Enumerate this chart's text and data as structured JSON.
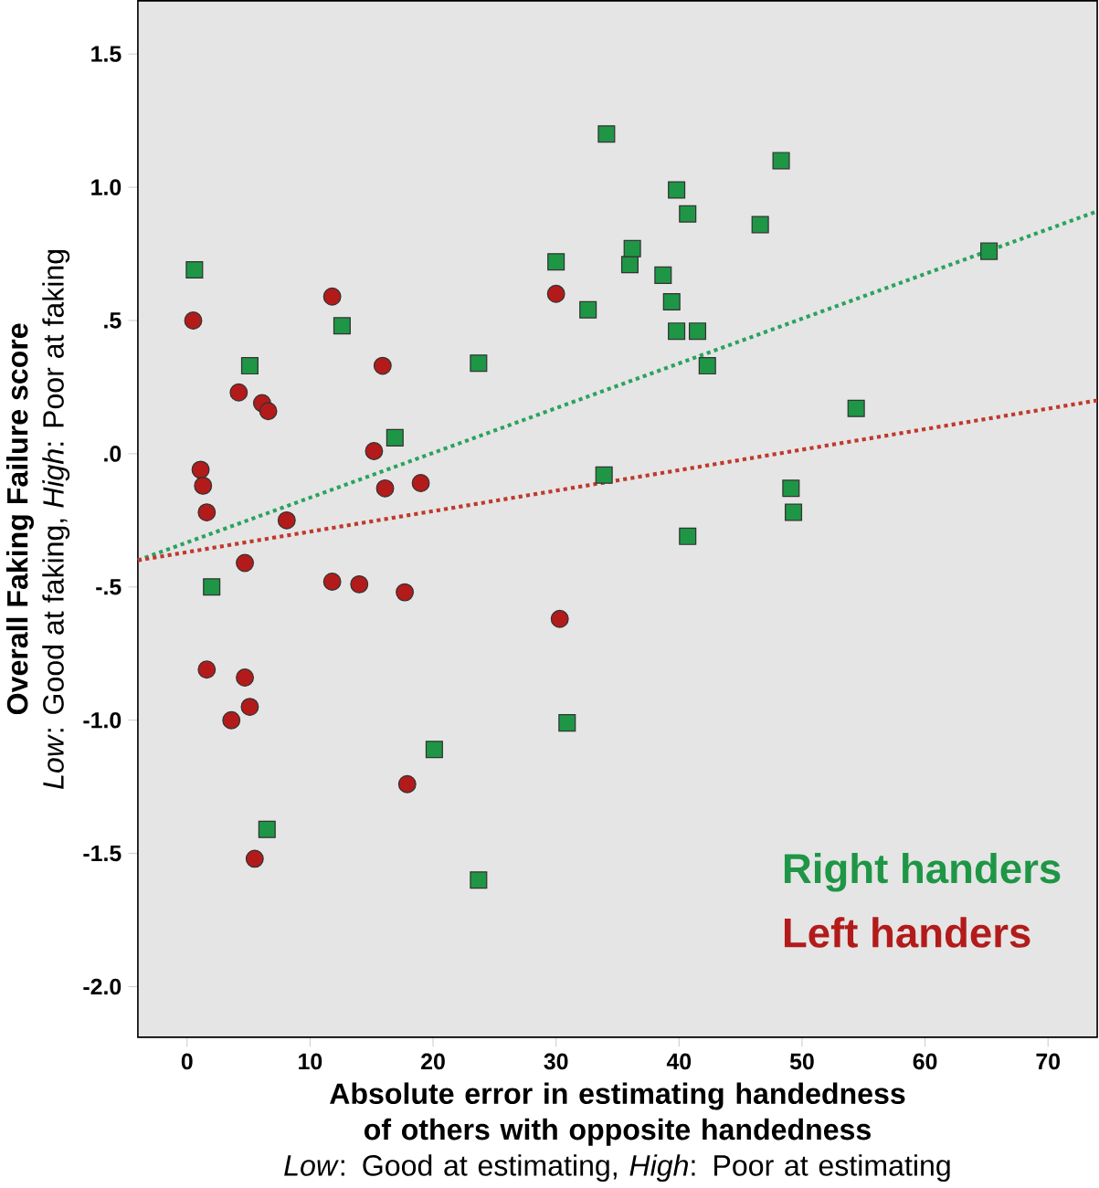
{
  "chart_data": {
    "type": "scatter",
    "xlabel": "Absolute error in estimating handedness of others with opposite handedness",
    "ylabel": "Overall Faking Failure score",
    "annotations": [
      "*Low*: Good at faking, *High*: Poor at faking",
      "*Low*: Good at estimating, *High*: Poor at estimating"
    ],
    "xlim": [
      -4,
      74
    ],
    "ylim": [
      -2.19,
      1.7
    ],
    "xticks": [
      0,
      10,
      20,
      30,
      40,
      50,
      60,
      70
    ],
    "yticks": [
      {
        "value": 1.5,
        "label": "1.5"
      },
      {
        "value": 1.0,
        "label": "1.0"
      },
      {
        "value": 0.5,
        "label": ".5"
      },
      {
        "value": 0,
        "label": ".0"
      },
      {
        "value": -0.5,
        "label": "-.5"
      },
      {
        "value": -1.0,
        "label": "-1.0"
      },
      {
        "value": -1.5,
        "label": "-1.5"
      },
      {
        "value": -2.0,
        "label": "-2.0"
      }
    ],
    "grid": false,
    "legend": "bottom right",
    "series": [
      {
        "name": "Right handers",
        "color": "#1e9646",
        "marker": "square",
        "x": [
          0.6,
          5.1,
          12.6,
          2.0,
          6.5,
          16.9,
          20.1,
          23.7,
          23.7,
          30.0,
          30.9,
          32.6,
          33.9,
          34.1,
          36.0,
          36.2,
          38.7,
          39.4,
          39.8,
          39.8,
          40.7,
          40.7,
          41.5,
          42.3,
          46.6,
          48.3,
          49.1,
          49.3,
          54.4,
          65.2
        ],
        "values": [
          0.69,
          0.33,
          0.48,
          -0.5,
          -1.41,
          0.06,
          -1.11,
          0.34,
          -1.6,
          0.72,
          -1.01,
          0.54,
          -0.08,
          1.2,
          0.71,
          0.77,
          0.67,
          0.57,
          0.99,
          0.46,
          0.9,
          -0.31,
          0.46,
          0.33,
          0.86,
          1.1,
          -0.13,
          -0.22,
          0.17,
          0.76
        ]
      },
      {
        "name": "Left handers",
        "color": "#b31b1b",
        "marker": "circle",
        "x": [
          0.5,
          11.8,
          4.2,
          6.1,
          6.6,
          15.9,
          1.1,
          1.3,
          1.6,
          15.2,
          16.1,
          19.0,
          8.1,
          4.7,
          11.8,
          14.0,
          17.7,
          30.0,
          30.3,
          1.6,
          4.7,
          5.1,
          3.6,
          17.9,
          5.5
        ],
        "values": [
          0.5,
          0.59,
          0.23,
          0.19,
          0.16,
          0.33,
          -0.06,
          -0.12,
          -0.22,
          0.01,
          -0.13,
          -0.11,
          -0.25,
          -0.41,
          -0.48,
          -0.49,
          -0.52,
          0.6,
          -0.62,
          -0.81,
          -0.84,
          -0.95,
          -1.0,
          -1.24,
          -1.52
        ]
      },
      {
        "type": "line",
        "color": "#2ca25f",
        "line_style": "dotted",
        "marker": "none",
        "x": [
          -4,
          74
        ],
        "values": [
          -0.4,
          0.91
        ]
      },
      {
        "type": "line",
        "color": "#c0392b",
        "line_style": "dotted",
        "marker": "none",
        "x": [
          -4,
          74
        ],
        "values": [
          -0.4,
          0.2
        ]
      }
    ]
  }
}
